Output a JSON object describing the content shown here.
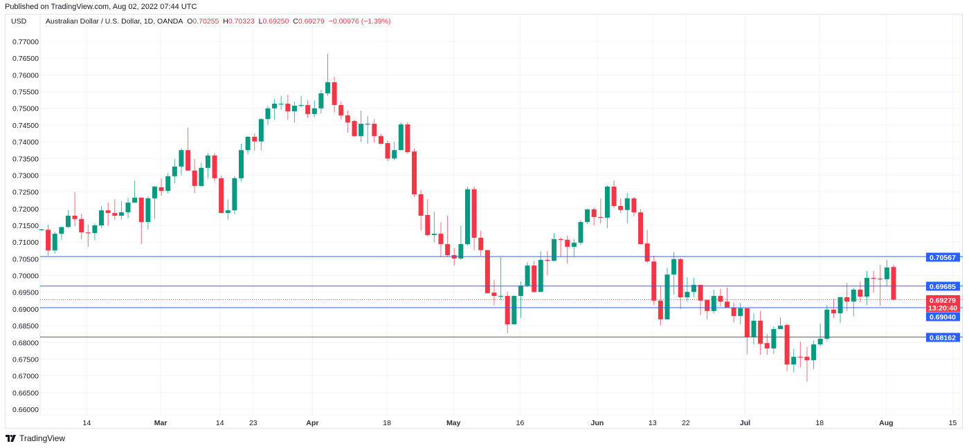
{
  "published": "Published on TradingView.com, Aug 02, 2022 07:44 UTC",
  "legend": {
    "currency": "USD",
    "symbol": "Australian Dollar / U.S. Dollar, 1D, OANDA",
    "o_label": "O",
    "o": "0.70255",
    "h_label": "H",
    "h": "0.70323",
    "l_label": "L",
    "l": "0.69250",
    "c_label": "C",
    "c": "0.69279",
    "change": "−0.00976 (−1.39%)"
  },
  "footer": {
    "brand": "TradingView"
  },
  "colors": {
    "up": "#089981",
    "down": "#f23645",
    "line": "#2962ff",
    "grid": "#f0f3fa"
  },
  "horizontal_lines": [
    {
      "price": 0.70567,
      "label": "0.70567"
    },
    {
      "price": 0.69685,
      "label": "0.69685"
    },
    {
      "price": 0.6904,
      "label": "0.69040"
    },
    {
      "price": 0.68162,
      "label": "0.68162"
    }
  ],
  "last_price": {
    "price": 0.69279,
    "label": "0.69279",
    "countdown": "13:20:40"
  },
  "chart_data": {
    "type": "candlestick",
    "title": "Australian Dollar / U.S. Dollar, 1D, OANDA",
    "ylabel": "USD",
    "ylim": [
      0.66,
      0.77
    ],
    "yticks": [
      "0.66000",
      "0.66500",
      "0.67000",
      "0.67500",
      "0.68000",
      "0.68500",
      "0.69000",
      "0.69500",
      "0.70000",
      "0.70500",
      "0.71000",
      "0.71500",
      "0.72000",
      "0.72500",
      "0.73000",
      "0.73500",
      "0.74000",
      "0.74500",
      "0.75000",
      "0.75500",
      "0.76000",
      "0.76500",
      "0.77000"
    ],
    "xticks": [
      {
        "bar": 6.8,
        "label": "14",
        "month": false
      },
      {
        "bar": 17.9,
        "label": "Mar",
        "month": true
      },
      {
        "bar": 26.8,
        "label": "14",
        "month": false
      },
      {
        "bar": 31.8,
        "label": "23",
        "month": false
      },
      {
        "bar": 40.7,
        "label": "Apr",
        "month": true
      },
      {
        "bar": 51.9,
        "label": "18",
        "month": false
      },
      {
        "bar": 61.9,
        "label": "May",
        "month": true
      },
      {
        "bar": 71.9,
        "label": "16",
        "month": false
      },
      {
        "bar": 83.5,
        "label": "Jun",
        "month": true
      },
      {
        "bar": 91.8,
        "label": "13",
        "month": false
      },
      {
        "bar": 96.8,
        "label": "22",
        "month": false
      },
      {
        "bar": 105.7,
        "label": "Jul",
        "month": true
      },
      {
        "bar": 116.9,
        "label": "18",
        "month": false
      },
      {
        "bar": 126.9,
        "label": "Aug",
        "month": true
      },
      {
        "bar": 136.9,
        "label": "15",
        "month": false
      }
    ],
    "ohlc_fields": [
      "open",
      "high",
      "low",
      "close"
    ],
    "candles": [
      [
        0.7136,
        0.714,
        0.7134,
        0.7138
      ],
      [
        0.7137,
        0.7152,
        0.7059,
        0.7075
      ],
      [
        0.7075,
        0.7131,
        0.7065,
        0.7125
      ],
      [
        0.7125,
        0.7145,
        0.7107,
        0.7145
      ],
      [
        0.7145,
        0.7196,
        0.7143,
        0.7179
      ],
      [
        0.7179,
        0.7249,
        0.7148,
        0.7169
      ],
      [
        0.7169,
        0.7185,
        0.7109,
        0.7129
      ],
      [
        0.7129,
        0.7152,
        0.7086,
        0.7127
      ],
      [
        0.7127,
        0.7156,
        0.7105,
        0.715
      ],
      [
        0.715,
        0.7206,
        0.7143,
        0.7195
      ],
      [
        0.7195,
        0.7218,
        0.715,
        0.7187
      ],
      [
        0.7187,
        0.7228,
        0.7167,
        0.7179
      ],
      [
        0.7179,
        0.7222,
        0.7168,
        0.7189
      ],
      [
        0.7189,
        0.7233,
        0.7171,
        0.7218
      ],
      [
        0.7218,
        0.7284,
        0.7218,
        0.7233
      ],
      [
        0.7233,
        0.7233,
        0.7094,
        0.716
      ],
      [
        0.716,
        0.7237,
        0.7138,
        0.7231
      ],
      [
        0.7231,
        0.7268,
        0.7169,
        0.7266
      ],
      [
        0.7264,
        0.7291,
        0.7239,
        0.7253
      ],
      [
        0.7253,
        0.7307,
        0.7245,
        0.7297
      ],
      [
        0.7297,
        0.7349,
        0.7276,
        0.7326
      ],
      [
        0.7326,
        0.7381,
        0.73,
        0.7375
      ],
      [
        0.7375,
        0.7442,
        0.7313,
        0.7314
      ],
      [
        0.7314,
        0.7349,
        0.7247,
        0.7268
      ],
      [
        0.7268,
        0.7338,
        0.7266,
        0.7322
      ],
      [
        0.7322,
        0.7367,
        0.729,
        0.7359
      ],
      [
        0.7359,
        0.7367,
        0.7282,
        0.7291
      ],
      [
        0.7291,
        0.7299,
        0.7187,
        0.7187
      ],
      [
        0.7187,
        0.7228,
        0.7167,
        0.7195
      ],
      [
        0.7195,
        0.7297,
        0.7183,
        0.7291
      ],
      [
        0.7291,
        0.7394,
        0.7282,
        0.7375
      ],
      [
        0.7375,
        0.7417,
        0.7363,
        0.7415
      ],
      [
        0.7415,
        0.7425,
        0.7373,
        0.7401
      ],
      [
        0.7401,
        0.747,
        0.7375,
        0.7468
      ],
      [
        0.7468,
        0.7508,
        0.745,
        0.75
      ],
      [
        0.75,
        0.7528,
        0.7466,
        0.7514
      ],
      [
        0.7512,
        0.7537,
        0.7496,
        0.7514
      ],
      [
        0.7514,
        0.7541,
        0.7466,
        0.7491
      ],
      [
        0.7491,
        0.752,
        0.7458,
        0.7508
      ],
      [
        0.7508,
        0.7537,
        0.7503,
        0.751
      ],
      [
        0.751,
        0.7524,
        0.7471,
        0.7483
      ],
      [
        0.7483,
        0.7524,
        0.7473,
        0.75
      ],
      [
        0.75,
        0.7555,
        0.7485,
        0.7545
      ],
      [
        0.7545,
        0.7663,
        0.7537,
        0.7578
      ],
      [
        0.7578,
        0.7595,
        0.7487,
        0.751
      ],
      [
        0.751,
        0.752,
        0.7466,
        0.7479
      ],
      [
        0.7479,
        0.7493,
        0.7427,
        0.7458
      ],
      [
        0.7462,
        0.7466,
        0.7415,
        0.7417
      ],
      [
        0.7417,
        0.7493,
        0.74,
        0.7454
      ],
      [
        0.7452,
        0.7477,
        0.7394,
        0.7454
      ],
      [
        0.7454,
        0.7468,
        0.7398,
        0.7417
      ],
      [
        0.7417,
        0.7423,
        0.7392,
        0.7394
      ],
      [
        0.7396,
        0.7404,
        0.7342,
        0.735
      ],
      [
        0.735,
        0.74,
        0.7344,
        0.7375
      ],
      [
        0.7375,
        0.7458,
        0.7375,
        0.7452
      ],
      [
        0.7452,
        0.7458,
        0.7365,
        0.7369
      ],
      [
        0.7371,
        0.738,
        0.7235,
        0.7243
      ],
      [
        0.7243,
        0.7256,
        0.7135,
        0.7179
      ],
      [
        0.7181,
        0.7228,
        0.7117,
        0.7121
      ],
      [
        0.7121,
        0.7191,
        0.71,
        0.7125
      ],
      [
        0.7125,
        0.716,
        0.7055,
        0.7094
      ],
      [
        0.7094,
        0.7179,
        0.7055,
        0.7061
      ],
      [
        0.7061,
        0.7082,
        0.703,
        0.7051
      ],
      [
        0.7051,
        0.7148,
        0.7047,
        0.7094
      ],
      [
        0.7094,
        0.7266,
        0.709,
        0.7258
      ],
      [
        0.7258,
        0.7266,
        0.7076,
        0.7113
      ],
      [
        0.7113,
        0.7135,
        0.7059,
        0.7076
      ],
      [
        0.7076,
        0.7076,
        0.6947,
        0.6947
      ],
      [
        0.6949,
        0.6987,
        0.691,
        0.6939
      ],
      [
        0.6937,
        0.7055,
        0.6926,
        0.6939
      ],
      [
        0.6939,
        0.6951,
        0.6827,
        0.6854
      ],
      [
        0.6854,
        0.6941,
        0.6854,
        0.6939
      ],
      [
        0.6939,
        0.6982,
        0.6873,
        0.697
      ],
      [
        0.697,
        0.704,
        0.6966,
        0.703
      ],
      [
        0.703,
        0.7044,
        0.6949,
        0.6951
      ],
      [
        0.6951,
        0.7073,
        0.6951,
        0.7047
      ],
      [
        0.7047,
        0.7073,
        0.7001,
        0.7044
      ],
      [
        0.7044,
        0.7127,
        0.7042,
        0.7109
      ],
      [
        0.7109,
        0.7115,
        0.7055,
        0.7107
      ],
      [
        0.7107,
        0.7119,
        0.7036,
        0.7086
      ],
      [
        0.7086,
        0.711,
        0.7055,
        0.7098
      ],
      [
        0.7098,
        0.7166,
        0.7092,
        0.716
      ],
      [
        0.716,
        0.72,
        0.7154,
        0.7198
      ],
      [
        0.7198,
        0.7204,
        0.715,
        0.7175
      ],
      [
        0.7175,
        0.7231,
        0.7156,
        0.7173
      ],
      [
        0.7173,
        0.727,
        0.7142,
        0.7266
      ],
      [
        0.7266,
        0.7285,
        0.7202,
        0.7208
      ],
      [
        0.7208,
        0.7231,
        0.7187,
        0.7196
      ],
      [
        0.7196,
        0.7247,
        0.7156,
        0.7231
      ],
      [
        0.7231,
        0.7235,
        0.7177,
        0.7189
      ],
      [
        0.7189,
        0.7198,
        0.7094,
        0.7094
      ],
      [
        0.7096,
        0.7137,
        0.7038,
        0.7042
      ],
      [
        0.7042,
        0.7059,
        0.6912,
        0.6925
      ],
      [
        0.6925,
        0.697,
        0.685,
        0.6869
      ],
      [
        0.6869,
        0.7024,
        0.6869,
        0.7003
      ],
      [
        0.7003,
        0.707,
        0.6943,
        0.7049
      ],
      [
        0.7049,
        0.7053,
        0.69,
        0.6935
      ],
      [
        0.6935,
        0.6995,
        0.6922,
        0.6951
      ],
      [
        0.6951,
        0.6993,
        0.6935,
        0.6972
      ],
      [
        0.6972,
        0.6972,
        0.6881,
        0.6925
      ],
      [
        0.6927,
        0.6927,
        0.6869,
        0.6894
      ],
      [
        0.6894,
        0.6958,
        0.6887,
        0.6939
      ],
      [
        0.6939,
        0.696,
        0.6908,
        0.6922
      ],
      [
        0.6922,
        0.6964,
        0.6904,
        0.6904
      ],
      [
        0.6904,
        0.6918,
        0.686,
        0.6879
      ],
      [
        0.6879,
        0.6918,
        0.6854,
        0.6902
      ],
      [
        0.6902,
        0.6902,
        0.6764,
        0.6815
      ],
      [
        0.6815,
        0.6887,
        0.6794,
        0.6865
      ],
      [
        0.6865,
        0.6894,
        0.6763,
        0.6796
      ],
      [
        0.6798,
        0.6825,
        0.6763,
        0.6782
      ],
      [
        0.6782,
        0.6848,
        0.6765,
        0.684
      ],
      [
        0.684,
        0.6875,
        0.6844,
        0.685
      ],
      [
        0.6852,
        0.6856,
        0.6714,
        0.6734
      ],
      [
        0.6734,
        0.678,
        0.6712,
        0.6757
      ],
      [
        0.6757,
        0.6802,
        0.6726,
        0.6755
      ],
      [
        0.6757,
        0.6786,
        0.6683,
        0.6747
      ],
      [
        0.6747,
        0.6806,
        0.672,
        0.6794
      ],
      [
        0.6794,
        0.6856,
        0.6788,
        0.6811
      ],
      [
        0.6811,
        0.6912,
        0.6804,
        0.6898
      ],
      [
        0.6898,
        0.6931,
        0.6873,
        0.6887
      ],
      [
        0.6887,
        0.6937,
        0.6858,
        0.6935
      ],
      [
        0.6935,
        0.6978,
        0.6894,
        0.6922
      ],
      [
        0.6922,
        0.6964,
        0.6879,
        0.6958
      ],
      [
        0.6958,
        0.6982,
        0.692,
        0.6937
      ],
      [
        0.6937,
        0.7014,
        0.6912,
        0.6993
      ],
      [
        0.6993,
        0.7014,
        0.6949,
        0.6991
      ],
      [
        0.6991,
        0.7032,
        0.6909,
        0.6989
      ],
      [
        0.6989,
        0.7047,
        0.697,
        0.7024
      ],
      [
        0.70255,
        0.70323,
        0.6925,
        0.69279
      ]
    ]
  }
}
